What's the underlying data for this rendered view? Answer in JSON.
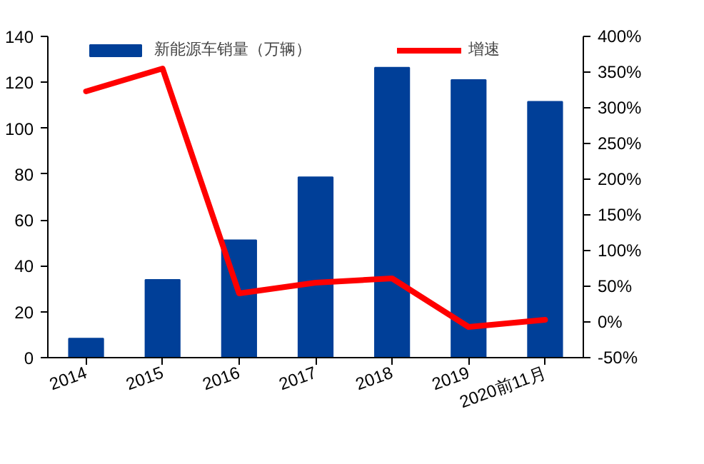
{
  "chart_data": {
    "type": "bar",
    "categories": [
      "2014",
      "2015",
      "2016",
      "2017",
      "2018",
      "2019",
      "2020前11月"
    ],
    "series": [
      {
        "name": "新能源车销量（万辆）",
        "color": "#003f98",
        "values": [
          8.3,
          33.9,
          51.2,
          78.6,
          126.4,
          121,
          111.5
        ]
      },
      {
        "name": "增速",
        "type": "line",
        "axis": "y2",
        "color": "#ff0000",
        "values": [
          323,
          355,
          40,
          55,
          61,
          -7,
          3
        ]
      }
    ],
    "ylim": [
      0,
      140
    ],
    "yticks": [
      0,
      20,
      40,
      60,
      80,
      100,
      120,
      140
    ],
    "y2lim": [
      -50,
      400
    ],
    "y2ticks": [
      {
        "value": -50,
        "label": "-50%"
      },
      {
        "value": 0,
        "label": "0%"
      },
      {
        "value": 50,
        "label": "50%"
      },
      {
        "value": 100,
        "label": "100%"
      },
      {
        "value": 150,
        "label": "150%"
      },
      {
        "value": 200,
        "label": "200%"
      },
      {
        "value": 250,
        "label": "250%"
      },
      {
        "value": 300,
        "label": "300%"
      },
      {
        "value": 350,
        "label": "350%"
      },
      {
        "value": 400,
        "label": "400%"
      }
    ],
    "grid": false,
    "legend": "top"
  }
}
